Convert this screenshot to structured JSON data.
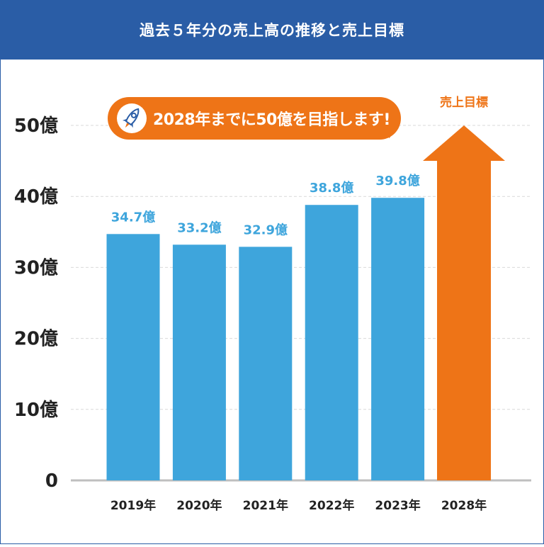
{
  "title": "過去５年分の売上高の推移と売上目標",
  "callout": {
    "text": "2028年までに50億を目指します!",
    "icon": "rocket-icon"
  },
  "colors": {
    "header": "#2a5da6",
    "bar": "#3ea5dc",
    "target": "#ee7417",
    "grid": "#d9d9d9",
    "axis_text": "#222222"
  },
  "chart_data": {
    "type": "bar",
    "title": "過去５年分の売上高の推移と売上目標",
    "categories": [
      "2019年",
      "2020年",
      "2021年",
      "2022年",
      "2023年",
      "2028年"
    ],
    "series": [
      {
        "values": [
          34.7,
          33.2,
          32.9,
          38.8,
          39.8,
          null
        ],
        "labels": [
          "34.7億",
          "33.2億",
          "32.9億",
          "38.8億",
          "39.8億",
          ""
        ]
      },
      {
        "name": "売上目標",
        "values": [
          null,
          null,
          null,
          null,
          null,
          50
        ]
      }
    ],
    "yticks": [
      {
        "value": 0,
        "label": "0"
      },
      {
        "value": 10,
        "label": "10億"
      },
      {
        "value": 20,
        "label": "20億"
      },
      {
        "value": 30,
        "label": "30億"
      },
      {
        "value": 40,
        "label": "40億"
      },
      {
        "value": 50,
        "label": "50億"
      }
    ],
    "ylim": [
      0,
      50
    ],
    "grid": true,
    "xlabel": "",
    "ylabel": ""
  }
}
